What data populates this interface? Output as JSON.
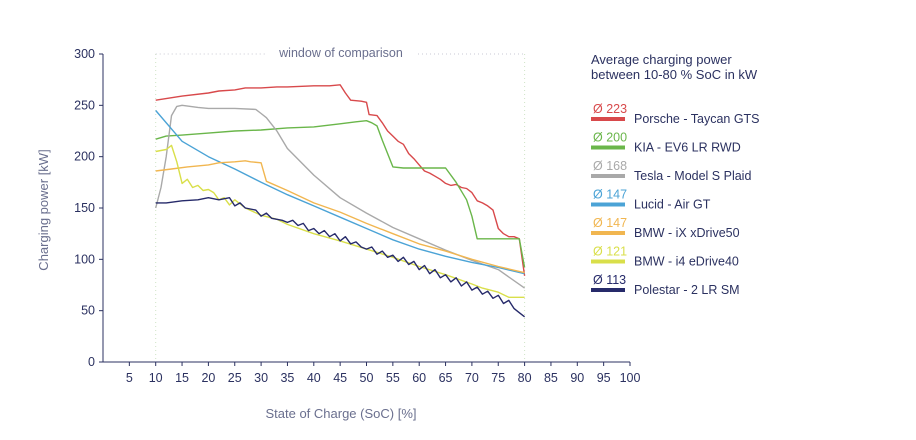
{
  "chart_data": {
    "type": "line",
    "xlabel": "State of Charge (SoC) [%]",
    "ylabel": "Charging power [kW]",
    "xlim": [
      0,
      100
    ],
    "ylim": [
      0,
      300
    ],
    "x_ticks": [
      5,
      10,
      15,
      20,
      25,
      30,
      35,
      40,
      45,
      50,
      55,
      60,
      65,
      70,
      75,
      80,
      85,
      90,
      95,
      100
    ],
    "y_ticks": [
      0,
      50,
      100,
      150,
      200,
      250,
      300
    ],
    "window_label": "window of comparison",
    "window": [
      10,
      80
    ],
    "legend_title_line1": "Average charging power",
    "legend_title_line2": "between 10-80 % SoC in kW",
    "series": [
      {
        "name": "Porsche - Taycan GTS",
        "avg": "Ø 223",
        "color": "#d8494b",
        "x": [
          10,
          15,
          20,
          22,
          25,
          27,
          30,
          33,
          35,
          40,
          43,
          45,
          46,
          47,
          49,
          50,
          50.5,
          52,
          53,
          54,
          55,
          56,
          57,
          58,
          59,
          60,
          61,
          62,
          63,
          64,
          65,
          66,
          67,
          68,
          69,
          70,
          71,
          72,
          73,
          74,
          75,
          76,
          77,
          78,
          79,
          80
        ],
        "y": [
          255,
          259,
          262,
          264,
          265,
          267,
          267,
          268,
          268,
          269,
          269,
          270,
          262,
          255,
          254,
          253,
          241,
          240,
          233,
          225,
          220,
          215,
          212,
          203,
          198,
          192,
          186,
          184,
          181,
          178,
          174,
          172,
          173,
          170,
          169,
          165,
          157,
          155,
          152,
          148,
          130,
          125,
          122,
          122,
          120,
          84
        ]
      },
      {
        "name": "KIA - EV6 LR RWD",
        "avg": "Ø 200",
        "color": "#6ab64a",
        "x": [
          10,
          12,
          15,
          20,
          25,
          30,
          35,
          40,
          45,
          48,
          50,
          51,
          52,
          53,
          55,
          57,
          60,
          65,
          67,
          69,
          70,
          71,
          75,
          79,
          80
        ],
        "y": [
          217,
          220,
          221,
          223,
          225,
          226,
          228,
          229,
          232,
          234,
          235,
          233,
          230,
          216,
          190,
          189,
          189,
          189,
          175,
          158,
          142,
          120,
          120,
          120,
          92
        ]
      },
      {
        "name": "Tesla - Model S Plaid",
        "avg": "Ø 168",
        "color": "#a9a9a9",
        "x": [
          10,
          11,
          12,
          13,
          14,
          15,
          18,
          20,
          25,
          29,
          30,
          31,
          33,
          35,
          40,
          45,
          50,
          55,
          60,
          65,
          70,
          75,
          80
        ],
        "y": [
          150,
          170,
          200,
          240,
          249,
          250,
          248,
          247,
          247,
          246,
          242,
          238,
          225,
          208,
          182,
          160,
          145,
          131,
          120,
          109,
          99,
          90,
          72
        ]
      },
      {
        "name": "Lucid - Air GT",
        "avg": "Ø 147",
        "color": "#4ba3d6",
        "x": [
          10,
          15,
          20,
          25,
          30,
          35,
          40,
          45,
          50,
          55,
          60,
          65,
          70,
          75,
          80
        ],
        "y": [
          245,
          215,
          200,
          188,
          175,
          163,
          152,
          141,
          130,
          119,
          110,
          103,
          97,
          92,
          86
        ]
      },
      {
        "name": "BMW - iX xDrive50",
        "avg": "Ø 147",
        "color": "#f1b650",
        "x": [
          10,
          13,
          16,
          18,
          20,
          22,
          25,
          27,
          28,
          30,
          31,
          35,
          40,
          45,
          50,
          55,
          60,
          65,
          70,
          75,
          80
        ],
        "y": [
          186,
          188,
          190,
          191,
          192,
          194,
          195,
          196,
          195,
          194,
          176,
          167,
          155,
          146,
          135,
          125,
          115,
          108,
          100,
          93,
          87
        ]
      },
      {
        "name": "BMW - i4 eDrive40",
        "avg": "Ø 121",
        "color": "#d9df4a",
        "x": [
          10,
          12,
          13,
          14,
          15,
          16,
          17,
          18,
          19,
          20,
          21,
          22,
          23,
          24,
          25,
          27,
          30,
          33,
          35,
          40,
          45,
          50,
          55,
          60,
          65,
          70,
          72,
          75,
          77,
          80
        ],
        "y": [
          205,
          207,
          211,
          195,
          174,
          178,
          170,
          172,
          167,
          168,
          165,
          158,
          160,
          153,
          158,
          150,
          143,
          139,
          134,
          125,
          118,
          110,
          102,
          93,
          85,
          76,
          72,
          68,
          63,
          63
        ]
      },
      {
        "name": "Polestar - 2 LR SM",
        "avg": "Ø 113",
        "color": "#262a6a",
        "x": [
          10,
          12,
          15,
          18,
          20,
          22,
          24,
          25,
          26,
          27,
          29,
          30,
          31,
          32,
          34,
          35,
          36,
          37,
          38,
          39,
          40,
          41,
          42,
          43,
          44,
          45,
          46,
          47,
          48,
          49,
          50,
          51,
          52,
          53,
          54,
          55,
          56,
          57,
          58,
          59,
          60,
          61,
          62,
          63,
          64,
          65,
          66,
          67,
          68,
          69,
          70,
          71,
          72,
          73,
          74,
          75,
          76,
          77,
          78,
          79,
          80
        ],
        "y": [
          155,
          155,
          157,
          158,
          160,
          158,
          160,
          152,
          155,
          150,
          148,
          142,
          145,
          140,
          138,
          136,
          138,
          133,
          135,
          128,
          130,
          125,
          128,
          122,
          125,
          118,
          122,
          115,
          117,
          112,
          110,
          112,
          105,
          108,
          102,
          104,
          98,
          102,
          95,
          98,
          90,
          94,
          86,
          90,
          82,
          85,
          78,
          82,
          74,
          78,
          70,
          73,
          66,
          69,
          62,
          65,
          57,
          60,
          52,
          48,
          44
        ]
      }
    ]
  }
}
